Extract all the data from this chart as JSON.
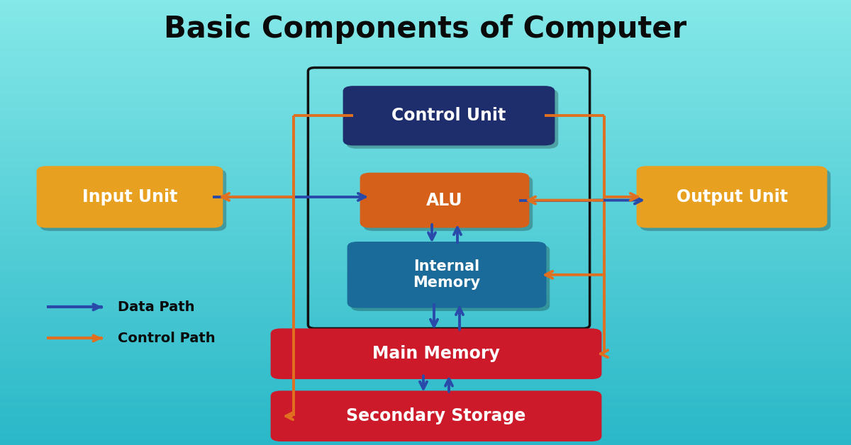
{
  "title": "Basic Components of Computer",
  "title_fontsize": 30,
  "bg_color_top": "#7ee8e8",
  "bg_color_bottom": "#30b8c8",
  "box_colors": {
    "control_unit": "#1e2d6b",
    "alu": "#d4601a",
    "internal_memory": "#1a6b9a",
    "input_unit": "#e8a020",
    "output_unit": "#e8a020",
    "main_memory": "#cc1a2a",
    "secondary_storage": "#cc1a2a"
  },
  "text_color_white": "#ffffff",
  "text_color_black": "#0a0a0a",
  "data_path_color": "#2a4aaa",
  "control_path_color": "#e07020",
  "legend_data_path": "Data Path",
  "legend_control_path": "Control Path"
}
